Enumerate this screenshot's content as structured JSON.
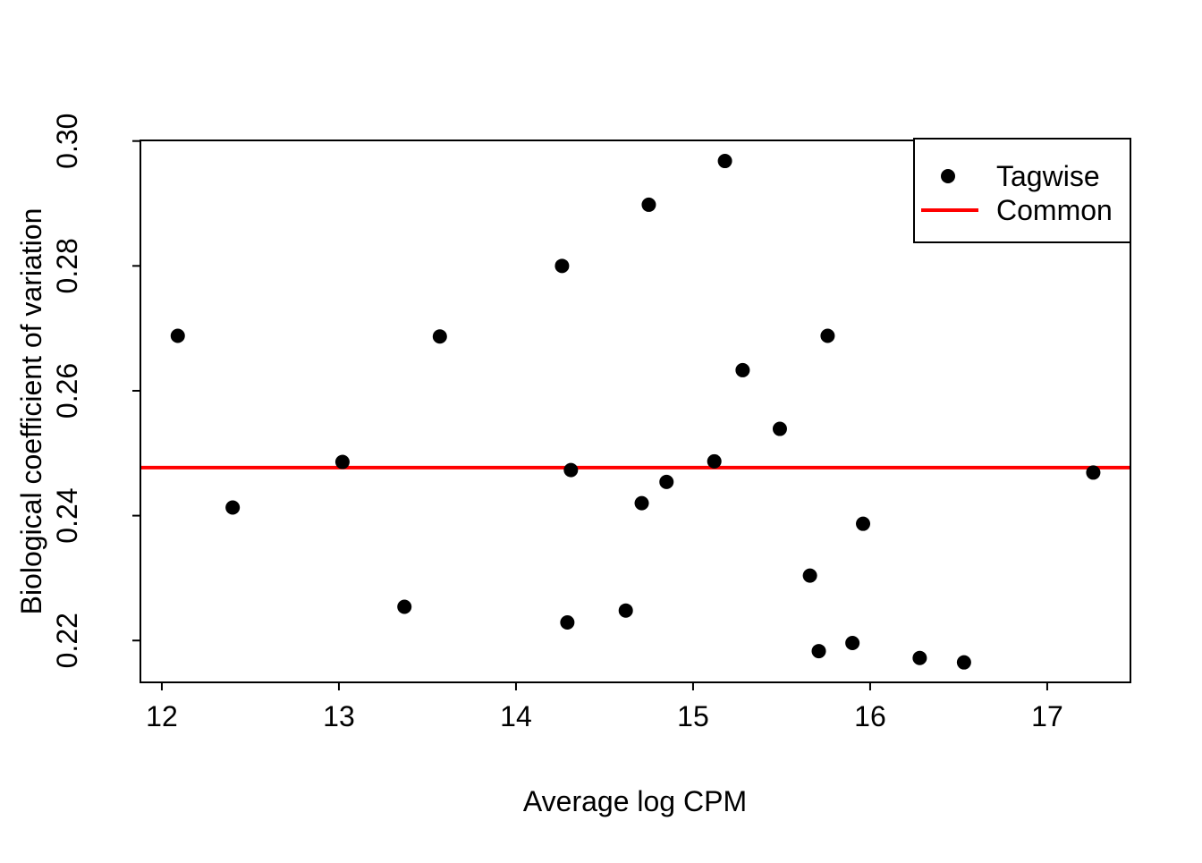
{
  "figure": {
    "background": "#ffffff",
    "foreground": "#000000"
  },
  "chart_data": {
    "type": "scatter",
    "title": "",
    "xlabel": "Average log CPM",
    "ylabel": "Biological coefficient of variation",
    "xlim": [
      11.879,
      17.47
    ],
    "ylim": [
      0.2133,
      0.3001
    ],
    "x_ticks": [
      12,
      13,
      14,
      15,
      16,
      17
    ],
    "x_tick_labels": [
      "12",
      "13",
      "14",
      "15",
      "16",
      "17"
    ],
    "y_ticks": [
      0.22,
      0.24,
      0.26,
      0.28,
      0.3
    ],
    "y_tick_labels": [
      "0.22",
      "0.24",
      "0.26",
      "0.28",
      "0.30"
    ],
    "grid": false,
    "point_color": "#000000",
    "line_color": "#ff0000",
    "series": [
      {
        "name": "Tagwise",
        "type": "points",
        "color": "#000000",
        "points": [
          [
            12.09,
            0.2688
          ],
          [
            12.4,
            0.2413
          ],
          [
            13.02,
            0.2486
          ],
          [
            13.37,
            0.2254
          ],
          [
            13.57,
            0.2687
          ],
          [
            14.26,
            0.28
          ],
          [
            14.29,
            0.2229
          ],
          [
            14.31,
            0.2473
          ],
          [
            14.62,
            0.2248
          ],
          [
            14.71,
            0.242
          ],
          [
            14.75,
            0.2898
          ],
          [
            14.85,
            0.2454
          ],
          [
            15.12,
            0.2487
          ],
          [
            15.18,
            0.2968
          ],
          [
            15.28,
            0.2633
          ],
          [
            15.49,
            0.2539
          ],
          [
            15.66,
            0.2304
          ],
          [
            15.71,
            0.2183
          ],
          [
            15.76,
            0.2688
          ],
          [
            15.9,
            0.2196
          ],
          [
            15.96,
            0.2387
          ],
          [
            16.28,
            0.2172
          ],
          [
            16.53,
            0.2165
          ],
          [
            17.26,
            0.2469
          ]
        ]
      },
      {
        "name": "Common",
        "type": "hline",
        "color": "#ff0000",
        "value": 0.2477
      }
    ],
    "legend": {
      "position": "topright",
      "entries": [
        {
          "label": "Tagwise",
          "symbol": "point",
          "color": "#000000"
        },
        {
          "label": "Common",
          "symbol": "line",
          "color": "#ff0000"
        }
      ]
    }
  }
}
